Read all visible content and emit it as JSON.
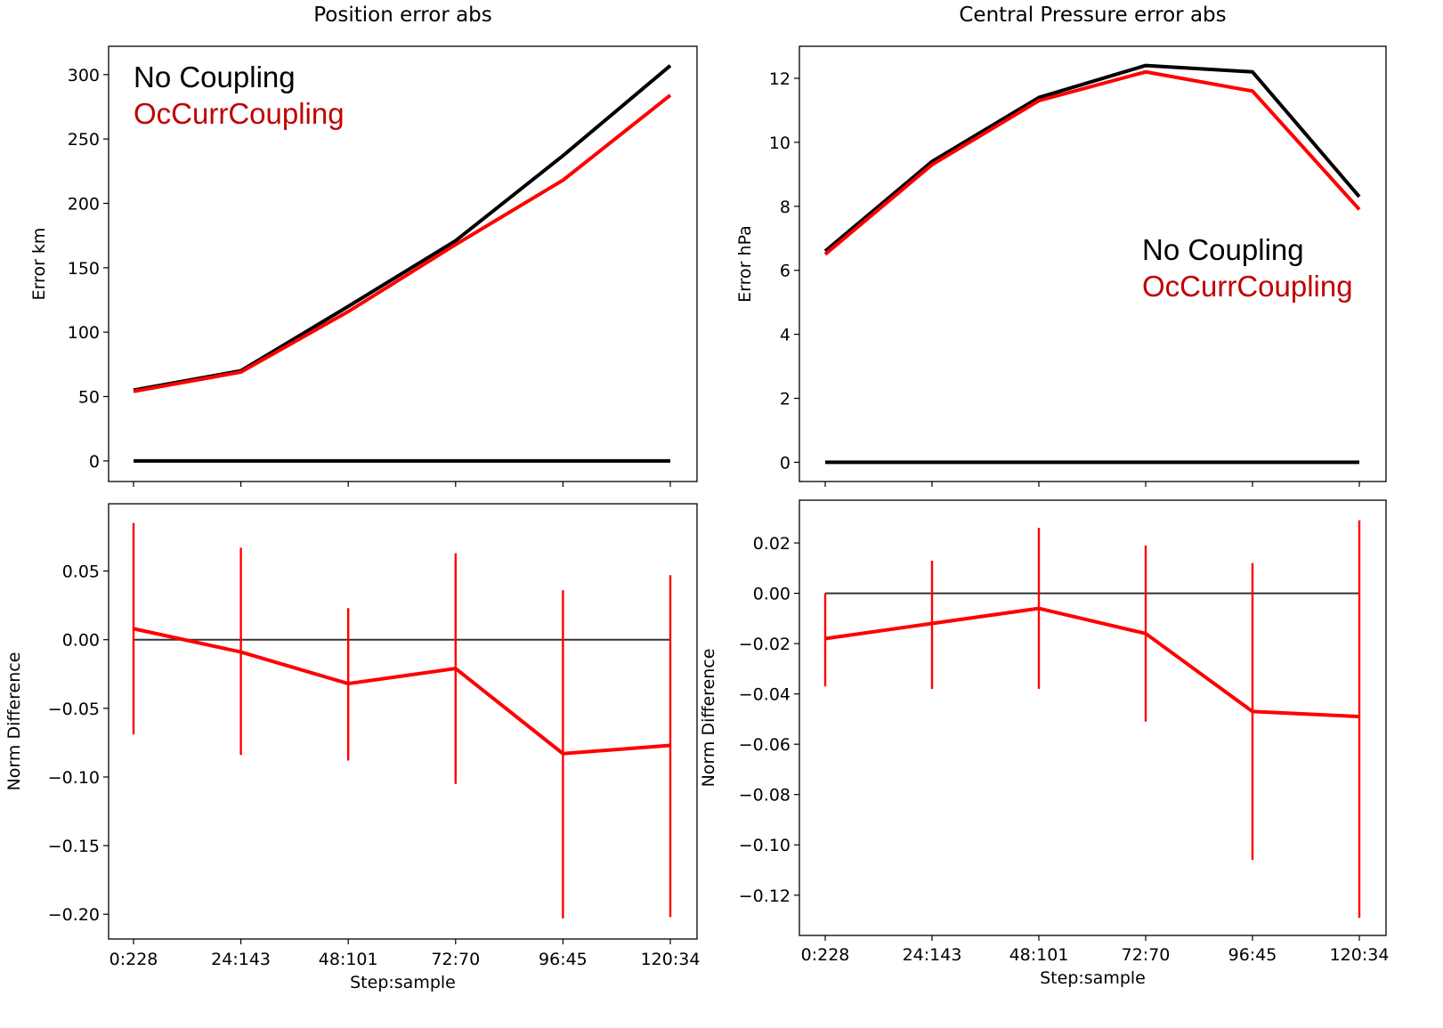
{
  "chart_data": [
    {
      "type": "line",
      "title": "Position error abs",
      "xlabel": "",
      "ylabel": "Error km",
      "categories": [
        "0:228",
        "24:143",
        "48:101",
        "72:70",
        "96:45",
        "120:34"
      ],
      "yticks": [
        0,
        50,
        100,
        150,
        200,
        250,
        300
      ],
      "ytick_labels": [
        "0",
        "50",
        "100",
        "150",
        "200",
        "250",
        "300"
      ],
      "ylim": [
        -16,
        322
      ],
      "show_xtick_labels": false,
      "series": [
        {
          "name": "No Coupling",
          "color": "#000000",
          "values": [
            55,
            70,
            120,
            171,
            237,
            307
          ]
        },
        {
          "name": "OcCurrCoupling",
          "color": "#ff0000",
          "values": [
            54,
            69,
            116,
            168,
            218,
            284
          ]
        },
        {
          "color": "#000000",
          "values": [
            0,
            0,
            0,
            0,
            0,
            0
          ]
        }
      ],
      "legend": {
        "placement": "top-left",
        "entries": [
          {
            "text": "No Coupling",
            "color": "#000000"
          },
          {
            "text": "OcCurrCoupling",
            "color": "#c00000"
          }
        ]
      }
    },
    {
      "type": "line",
      "title": "Central Pressure error abs",
      "xlabel": "",
      "ylabel": "Error hPa",
      "categories": [
        "0:228",
        "24:143",
        "48:101",
        "72:70",
        "96:45",
        "120:34"
      ],
      "yticks": [
        0,
        2,
        4,
        6,
        8,
        10,
        12
      ],
      "ytick_labels": [
        "0",
        "2",
        "4",
        "6",
        "8",
        "10",
        "12"
      ],
      "ylim": [
        -0.6,
        13.0
      ],
      "show_xtick_labels": false,
      "series": [
        {
          "name": "No Coupling",
          "color": "#000000",
          "values": [
            6.6,
            9.4,
            11.4,
            12.4,
            12.2,
            8.3
          ]
        },
        {
          "name": "OcCurrCoupling",
          "color": "#ff0000",
          "values": [
            6.5,
            9.3,
            11.3,
            12.2,
            11.6,
            7.9
          ]
        },
        {
          "color": "#000000",
          "values": [
            0,
            0,
            0,
            0,
            0,
            0
          ]
        }
      ],
      "legend": {
        "placement": "right",
        "entries": [
          {
            "text": "No Coupling",
            "color": "#000000"
          },
          {
            "text": "OcCurrCoupling",
            "color": "#c00000"
          }
        ]
      }
    },
    {
      "type": "line",
      "title": "",
      "xlabel": "Step:sample",
      "ylabel": "Norm Difference",
      "categories": [
        "0:228",
        "24:143",
        "48:101",
        "72:70",
        "96:45",
        "120:34"
      ],
      "yticks": [
        -0.2,
        -0.15,
        -0.1,
        -0.05,
        0.0,
        0.05
      ],
      "ytick_labels": [
        "−0.20",
        "−0.15",
        "−0.10",
        "−0.05",
        "0.00",
        "0.05"
      ],
      "ylim": [
        -0.218,
        0.099
      ],
      "show_xtick_labels": true,
      "zero_line": true,
      "series": [
        {
          "color": "#ff0000",
          "values": [
            0.008,
            -0.009,
            -0.032,
            -0.021,
            -0.083,
            -0.077
          ],
          "error_low": [
            -0.069,
            -0.084,
            -0.088,
            -0.105,
            -0.203,
            -0.202
          ],
          "error_high": [
            0.085,
            0.067,
            0.023,
            0.063,
            0.036,
            0.047
          ]
        }
      ]
    },
    {
      "type": "line",
      "title": "",
      "xlabel": "Step:sample",
      "ylabel": "Norm Difference",
      "categories": [
        "0:228",
        "24:143",
        "48:101",
        "72:70",
        "96:45",
        "120:34"
      ],
      "yticks": [
        -0.12,
        -0.1,
        -0.08,
        -0.06,
        -0.04,
        -0.02,
        0.0,
        0.02
      ],
      "ytick_labels": [
        "−0.12",
        "−0.10",
        "−0.08",
        "−0.06",
        "−0.04",
        "−0.02",
        "0.00",
        "0.02"
      ],
      "ylim": [
        -0.136,
        0.037
      ],
      "show_xtick_labels": true,
      "zero_line": true,
      "series": [
        {
          "color": "#ff0000",
          "values": [
            -0.018,
            -0.012,
            -0.006,
            -0.016,
            -0.047,
            -0.049
          ],
          "error_low": [
            -0.037,
            -0.038,
            -0.038,
            -0.051,
            -0.106,
            -0.129
          ],
          "error_high": [
            0.0,
            0.013,
            0.026,
            0.019,
            0.012,
            0.029
          ]
        }
      ]
    }
  ]
}
